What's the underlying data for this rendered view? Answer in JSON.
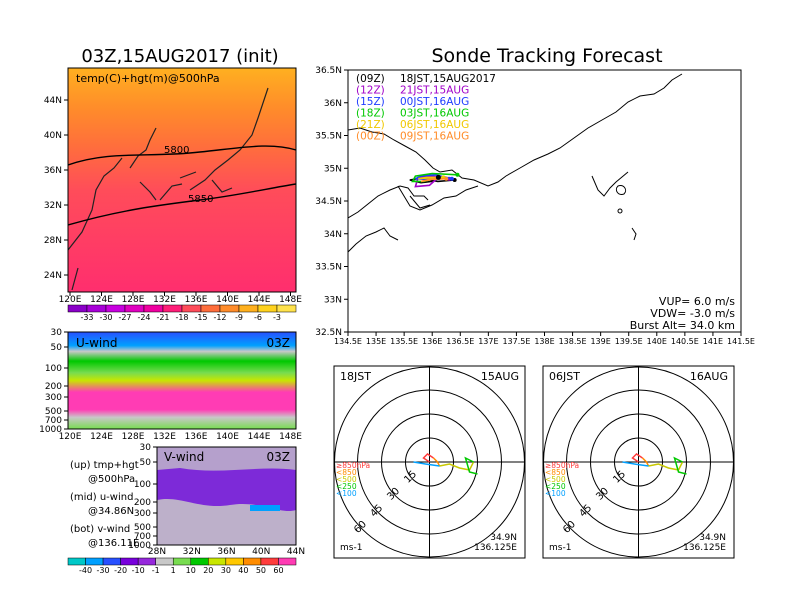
{
  "left_title": "03Z,15AUG2017 (init)",
  "right_title": "Sonde Tracking Forecast",
  "map_panel": {
    "label": "temp(C)+hgt(m)@500hPa",
    "lat_labels": [
      "44N",
      "40N",
      "36N",
      "32N",
      "28N",
      "24N"
    ],
    "lon_labels": [
      "120E",
      "124E",
      "128E",
      "132E",
      "136E",
      "140E",
      "144E",
      "148E"
    ],
    "contour_labels": [
      "5800",
      "5850"
    ],
    "colorbar_labels": [
      "-33",
      "-30",
      "-27",
      "-24",
      "-21",
      "-18",
      "-15",
      "-12",
      "-9",
      "-6",
      "-3"
    ],
    "colorbar_colors": [
      "#8a00c8",
      "#a800d8",
      "#c800e0",
      "#e000c0",
      "#f000a0",
      "#ff1e78",
      "#ff4c5a",
      "#ff6e3c",
      "#ff8c2a",
      "#ffb01e",
      "#ffd21e",
      "#ffe24c"
    ]
  },
  "uwind_panel": {
    "label": "U-wind",
    "time": "03Z",
    "p_labels": [
      "30",
      "50",
      "100",
      "200",
      "300",
      "500",
      "700",
      "1000"
    ],
    "lon_labels": [
      "120E",
      "124E",
      "128E",
      "132E",
      "136E",
      "140E",
      "144E",
      "148E"
    ]
  },
  "vwind_panel": {
    "label": "V-wind",
    "time": "03Z",
    "p_labels": [
      "30",
      "50",
      "100",
      "200",
      "300",
      "500",
      "700",
      "1000"
    ],
    "lat_labels": [
      "28N",
      "32N",
      "36N",
      "40N",
      "44N"
    ]
  },
  "side_notes": [
    {
      "a": "(up) tmp+hgt",
      "b": "@500hPa"
    },
    {
      "a": "(mid) u-wind",
      "b": "@34.86N"
    },
    {
      "a": "(bot) v-wind",
      "b": "@136.11E"
    }
  ],
  "wind_colorbar": {
    "labels": [
      "-40",
      "-30",
      "-20",
      "-10",
      "-1",
      "1",
      "10",
      "20",
      "30",
      "40",
      "50",
      "60"
    ],
    "colors": [
      "#00c8c8",
      "#00a0ff",
      "#2850ff",
      "#7800dc",
      "#9628dc",
      "#c8c8c8",
      "#78dc50",
      "#00c800",
      "#c8e600",
      "#ffc800",
      "#ff8c00",
      "#ff3c3c",
      "#ff3cb4"
    ]
  },
  "track_map": {
    "lat_labels": [
      "36.5N",
      "36N",
      "35.5N",
      "35N",
      "34.5N",
      "34N",
      "33.5N",
      "33N",
      "32.5N"
    ],
    "lon_labels": [
      "134.5E",
      "135E",
      "135.5E",
      "136E",
      "136.5E",
      "137E",
      "137.5E",
      "138E",
      "138.5E",
      "139E",
      "139.5E",
      "140E",
      "140.5E",
      "141E",
      "141.5E"
    ],
    "legend": [
      {
        "run": "(09Z)",
        "launch": "18JST,15AUG2017",
        "color": "#000000"
      },
      {
        "run": "(12Z)",
        "launch": "21JST,15AUG",
        "color": "#a000c8"
      },
      {
        "run": "(15Z)",
        "launch": "00JST,16AUG",
        "color": "#1e3cff"
      },
      {
        "run": "(18Z)",
        "launch": "03JST,16AUG",
        "color": "#00c800"
      },
      {
        "run": "(21Z)",
        "launch": "06JST,16AUG",
        "color": "#f0c800"
      },
      {
        "run": "(00Z)",
        "launch": "09JST,16AUG",
        "color": "#ff8c28"
      }
    ],
    "params": [
      "VUP= 6.0 m/s",
      "VDW= -3.0 m/s",
      "Burst Alt= 34.0 km"
    ]
  },
  "chart_data": [
    {
      "type": "line",
      "title": "Sonde Tracking Forecast",
      "xlim": [
        134.5,
        141.5
      ],
      "ylim": [
        32.5,
        36.5
      ],
      "series": [
        {
          "name": "(09Z) 18JST,15AUG2017",
          "x": [
            136.11,
            136.0,
            135.8,
            135.6,
            135.8,
            136.1,
            136.4
          ],
          "y": [
            34.86,
            34.8,
            34.78,
            34.82,
            34.85,
            34.8,
            34.82
          ]
        },
        {
          "name": "(12Z) 21JST,15AUG",
          "x": [
            136.11,
            135.95,
            135.7,
            135.75,
            136.0,
            136.3
          ],
          "y": [
            34.86,
            34.74,
            34.72,
            34.86,
            34.88,
            34.84
          ]
        },
        {
          "name": "(15Z) 00JST,16AUG",
          "x": [
            136.11,
            135.9,
            135.7,
            135.8,
            136.05,
            136.35
          ],
          "y": [
            34.86,
            34.83,
            34.84,
            34.88,
            34.9,
            34.84
          ]
        },
        {
          "name": "(18Z) 03JST,16AUG",
          "x": [
            136.11,
            135.85,
            135.65,
            135.7,
            136.0,
            136.45
          ],
          "y": [
            34.86,
            34.8,
            34.8,
            34.88,
            34.92,
            34.9
          ]
        },
        {
          "name": "(21Z) 06JST,16AUG",
          "x": [
            136.11,
            135.9,
            135.75,
            135.9,
            136.2
          ],
          "y": [
            34.86,
            34.85,
            34.84,
            34.86,
            34.86
          ]
        },
        {
          "name": "(00Z) 09JST,16AUG",
          "x": [
            136.11,
            135.95,
            135.8,
            135.95,
            136.25
          ],
          "y": [
            34.86,
            34.82,
            34.8,
            34.83,
            34.84
          ]
        }
      ]
    }
  ],
  "hodographs": [
    {
      "time": "18JST",
      "date": "15AUG",
      "ring_labels": [
        "15",
        "30",
        "45",
        "60"
      ],
      "unit": "ms-1",
      "lat": "34.9N",
      "lon": "136.125E",
      "levels": [
        {
          "label": "≥850hPa",
          "color": "#ff3c3c"
        },
        {
          "label": "<850",
          "color": "#ff8c00"
        },
        {
          "label": "<500",
          "color": "#c8c800"
        },
        {
          "label": "<250",
          "color": "#00c800"
        },
        {
          "label": "<100",
          "color": "#00a0ff"
        }
      ]
    },
    {
      "time": "06JST",
      "date": "16AUG",
      "ring_labels": [
        "15",
        "30",
        "45",
        "60"
      ],
      "unit": "ms-1",
      "lat": "34.9N",
      "lon": "136.125E",
      "levels": [
        {
          "label": "≥850hPa",
          "color": "#ff3c3c"
        },
        {
          "label": "<850",
          "color": "#ff8c00"
        },
        {
          "label": "<500",
          "color": "#c8c800"
        },
        {
          "label": "<250",
          "color": "#00c800"
        },
        {
          "label": "<100",
          "color": "#00a0ff"
        }
      ]
    }
  ]
}
